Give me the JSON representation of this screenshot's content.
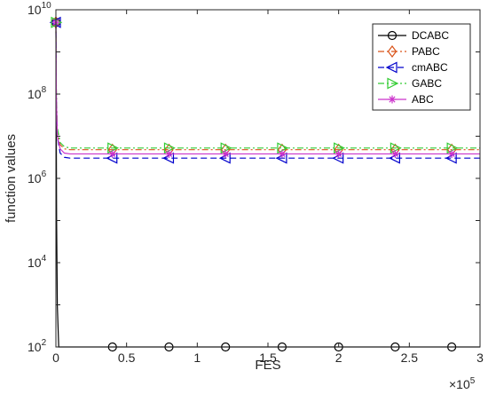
{
  "chart_data": {
    "type": "line",
    "xlabel": "FES",
    "ylabel": "function values",
    "x_multiplier_label": "×10",
    "x_multiplier_exp": "5",
    "xlim": [
      0,
      3
    ],
    "ylim_log10": [
      2,
      10
    ],
    "y_scale": "log",
    "x_ticks": [
      {
        "value": 0,
        "label": "0"
      },
      {
        "value": 0.5,
        "label": "0.5"
      },
      {
        "value": 1,
        "label": "1"
      },
      {
        "value": 1.5,
        "label": "1.5"
      },
      {
        "value": 2,
        "label": "2"
      },
      {
        "value": 2.5,
        "label": "2.5"
      },
      {
        "value": 3,
        "label": "3"
      }
    ],
    "y_ticks": [
      {
        "exp": 2,
        "base": "10",
        "sup": "2"
      },
      {
        "exp": 4,
        "base": "10",
        "sup": "4"
      },
      {
        "exp": 6,
        "base": "10",
        "sup": "6"
      },
      {
        "exp": 8,
        "base": "10",
        "sup": "8"
      },
      {
        "exp": 10,
        "base": "10",
        "sup": "10"
      }
    ],
    "grid": false,
    "legend_position": "top-right",
    "marker_x": [
      0,
      0.4,
      0.8,
      1.2,
      1.6,
      2.0,
      2.4,
      2.8
    ],
    "series": [
      {
        "name": "DCABC",
        "color": "#000000",
        "dash": "solid",
        "marker": "circle",
        "x": [
          0,
          0.002,
          0.005,
          0.01,
          0.02,
          3
        ],
        "y_log10": [
          9.7,
          8.0,
          5.0,
          3.0,
          2.0,
          2.0
        ]
      },
      {
        "name": "PABC",
        "color": "#d95319",
        "dash": "dashdot",
        "marker": "diamond",
        "x": [
          0,
          0.003,
          0.01,
          0.03,
          0.06,
          0.1,
          3
        ],
        "y_log10": [
          9.7,
          8.0,
          7.1,
          6.8,
          6.7,
          6.68,
          6.68
        ]
      },
      {
        "name": "cmABC",
        "color": "#0000cc",
        "dash": "dashed",
        "marker": "triangle-left",
        "x": [
          0,
          0.003,
          0.01,
          0.03,
          0.06,
          0.1,
          3
        ],
        "y_log10": [
          9.7,
          7.9,
          7.0,
          6.6,
          6.5,
          6.48,
          6.48
        ]
      },
      {
        "name": "GABC",
        "color": "#33cc33",
        "dash": "dashdot",
        "marker": "triangle-right",
        "x": [
          0,
          0.003,
          0.01,
          0.03,
          0.06,
          0.1,
          3
        ],
        "y_log10": [
          9.7,
          8.1,
          7.2,
          6.85,
          6.75,
          6.72,
          6.72
        ]
      },
      {
        "name": "ABC",
        "color": "#cc33cc",
        "dash": "solid",
        "marker": "star",
        "x": [
          0,
          0.003,
          0.01,
          0.03,
          0.06,
          0.1,
          3
        ],
        "y_log10": [
          9.7,
          8.0,
          7.0,
          6.7,
          6.6,
          6.58,
          6.58
        ]
      }
    ]
  }
}
